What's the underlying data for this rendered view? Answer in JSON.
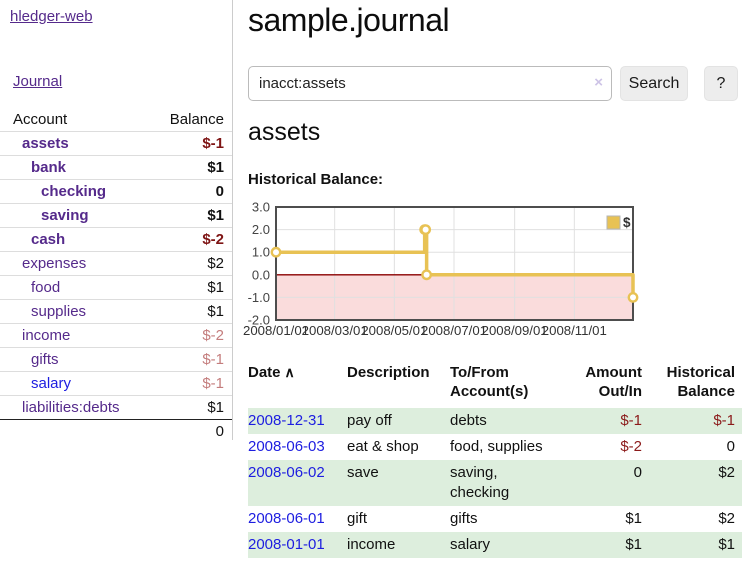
{
  "app": {
    "brand": "hledger-web",
    "nav_journal": "Journal"
  },
  "sidebar": {
    "headers": {
      "account": "Account",
      "balance": "Balance"
    },
    "rows": [
      {
        "account": "assets",
        "balance": "$-1"
      },
      {
        "account": "bank",
        "balance": "$1"
      },
      {
        "account": "checking",
        "balance": "0"
      },
      {
        "account": "saving",
        "balance": "$1"
      },
      {
        "account": "cash",
        "balance": "$-2"
      },
      {
        "account": "expenses",
        "balance": "$2"
      },
      {
        "account": "food",
        "balance": "$1"
      },
      {
        "account": "supplies",
        "balance": "$1"
      },
      {
        "account": "income",
        "balance": "$-2"
      },
      {
        "account": "gifts",
        "balance": "$-1"
      },
      {
        "account": "salary",
        "balance": "$-1"
      },
      {
        "account": "liabilities:debts",
        "balance": "$1"
      }
    ],
    "total": "0"
  },
  "main": {
    "title": "sample.journal",
    "search": {
      "value": "inacct:assets",
      "clear_icon": "×",
      "search_button": "Search",
      "help_button": "?"
    },
    "account_heading": "assets",
    "chart_heading": "Historical Balance:"
  },
  "chart_data": {
    "type": "line",
    "title": "Historical Balance:",
    "step": true,
    "series": [
      {
        "name": "$",
        "color": "#e8c254",
        "points": [
          {
            "date": "2008-01-01",
            "day": 0,
            "value": 1
          },
          {
            "date": "2008-06-01",
            "day": 152,
            "value": 2
          },
          {
            "date": "2008-06-02",
            "day": 153,
            "value": 2
          },
          {
            "date": "2008-06-03",
            "day": 154,
            "value": 0
          },
          {
            "date": "2008-12-31",
            "day": 365,
            "value": -1
          }
        ]
      }
    ],
    "x_ticks": [
      {
        "day": 0,
        "label": "2008/01/01"
      },
      {
        "day": 60,
        "label": "2008/03/01"
      },
      {
        "day": 121,
        "label": "2008/05/01"
      },
      {
        "day": 182,
        "label": "2008/07/01"
      },
      {
        "day": 244,
        "label": "2008/09/01"
      },
      {
        "day": 305,
        "label": "2008/11/01"
      }
    ],
    "y_ticks": [
      {
        "value": 3,
        "label": "3.0"
      },
      {
        "value": 2,
        "label": "2.0"
      },
      {
        "value": 1,
        "label": "1.0"
      },
      {
        "value": 0,
        "label": "0.0"
      },
      {
        "value": -1,
        "label": "-1.0"
      },
      {
        "value": -2,
        "label": "-2.0"
      }
    ],
    "xlim_days": [
      0,
      365
    ],
    "ylim": [
      -2,
      3
    ],
    "grid": true,
    "negative_fill": "#fadcdc",
    "zero_line_color": "#8b0000",
    "frame_color": "#4d4d4d",
    "grid_color": "#e0e0e0",
    "legend": {
      "label": "$",
      "position": "top-right"
    }
  },
  "register": {
    "headers": {
      "date": "Date",
      "sort_icon": "∧",
      "description": "Description",
      "accounts": "To/From\nAccount(s)",
      "amount": "Amount\nOut/In",
      "balance": "Historical\nBalance"
    },
    "rows": [
      {
        "date": "2008-12-31",
        "description": "pay off",
        "accounts": "debts",
        "amount": "$-1",
        "balance": "$-1"
      },
      {
        "date": "2008-06-03",
        "description": "eat & shop",
        "accounts": "food, supplies",
        "amount": "$-2",
        "balance": "0"
      },
      {
        "date": "2008-06-02",
        "description": "save",
        "accounts": "saving,\nchecking",
        "amount": "0",
        "balance": "$2"
      },
      {
        "date": "2008-06-01",
        "description": "gift",
        "accounts": "gifts",
        "amount": "$1",
        "balance": "$2"
      },
      {
        "date": "2008-01-01",
        "description": "income",
        "accounts": "salary",
        "amount": "$1",
        "balance": "$1"
      }
    ]
  }
}
